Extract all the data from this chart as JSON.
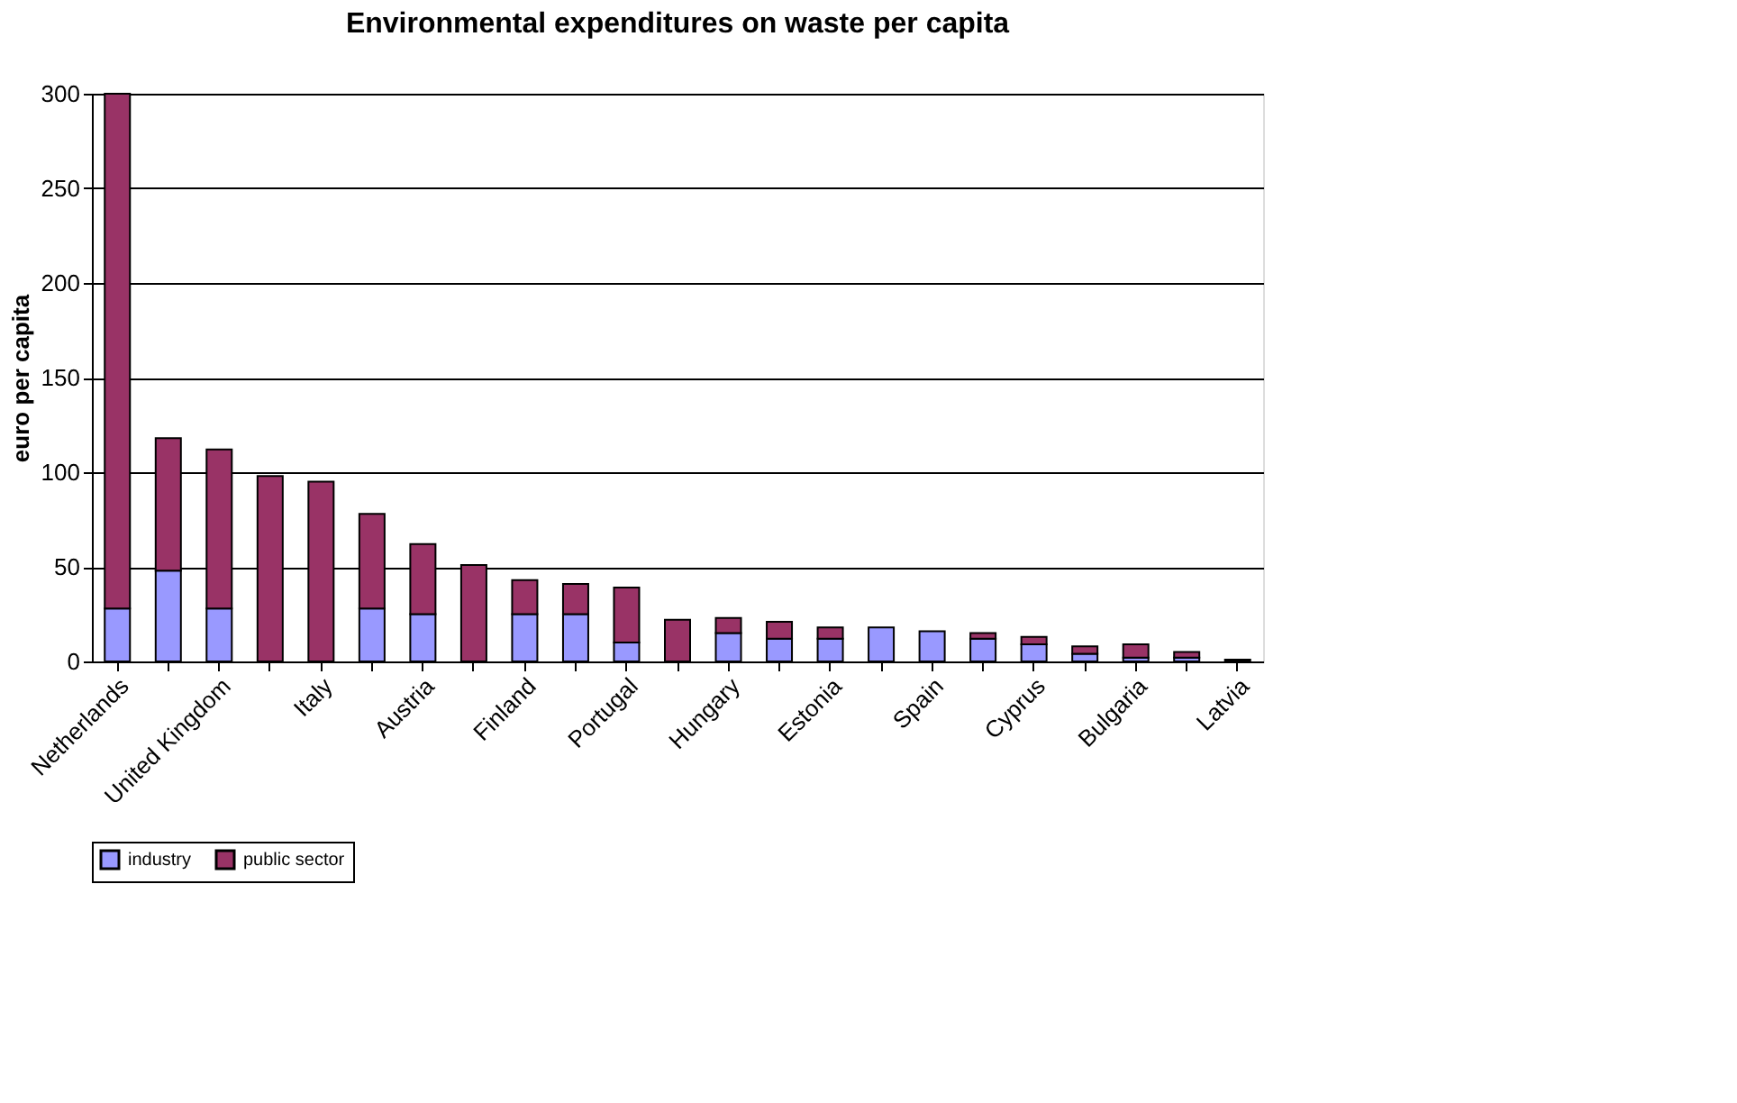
{
  "chart_data": {
    "type": "bar",
    "title": "Environmental expenditures on waste per capita",
    "ylabel": "euro per capita",
    "categories": [
      "Netherlands",
      null,
      "United Kingdom",
      null,
      "Italy",
      null,
      "Austria",
      null,
      "Finland",
      null,
      "Portugal",
      null,
      "Hungary",
      null,
      "Estonia",
      null,
      "Spain",
      null,
      "Cyprus",
      null,
      "Bulgaria",
      null,
      "Latvia"
    ],
    "series": [
      {
        "name": "industry",
        "color": "#9999ff",
        "values": [
          28,
          48,
          28,
          0,
          0,
          28,
          25,
          0,
          25,
          25,
          10,
          0,
          15,
          12,
          12,
          18,
          16,
          12,
          9,
          4,
          2,
          2,
          0
        ]
      },
      {
        "name": "public sector",
        "color": "#993366",
        "values": [
          272,
          70,
          84,
          98,
          95,
          50,
          37,
          51,
          18,
          16,
          29,
          22,
          8,
          9,
          6,
          0,
          0,
          3,
          4,
          4,
          7,
          3,
          1
        ]
      }
    ],
    "stacked": true,
    "ylim": [
      0,
      300
    ],
    "yticks": [
      0,
      50,
      100,
      150,
      200,
      250,
      300
    ],
    "grid": "y",
    "legend": "bottom"
  }
}
